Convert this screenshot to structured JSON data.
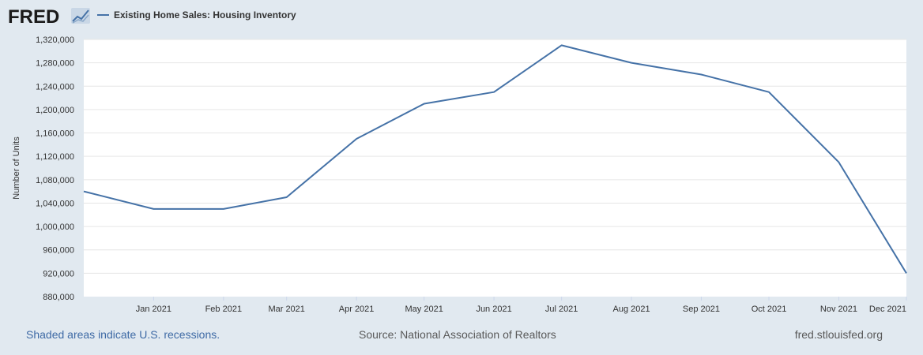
{
  "header": {
    "logo_text": "FRED",
    "series_name": "Existing Home Sales: Housing Inventory",
    "line_color": "#4572a7"
  },
  "footer": {
    "recession_note": "Shaded areas indicate U.S. recessions.",
    "source": "Source: National Association of Realtors",
    "site": "fred.stlouisfed.org"
  },
  "chart_data": {
    "type": "line",
    "title": "Existing Home Sales: Housing Inventory",
    "xlabel": "",
    "ylabel": "Number of Units",
    "ylim": [
      880000,
      1320000
    ],
    "yticks": [
      880000,
      920000,
      960000,
      1000000,
      1040000,
      1080000,
      1120000,
      1160000,
      1200000,
      1240000,
      1280000,
      1320000
    ],
    "ytick_labels": [
      "880,000",
      "920,000",
      "960,000",
      "1,000,000",
      "1,040,000",
      "1,080,000",
      "1,120,000",
      "1,160,000",
      "1,200,000",
      "1,240,000",
      "1,280,000",
      "1,320,000"
    ],
    "x_tick_labels": [
      "Jan 2021",
      "Feb 2021",
      "Mar 2021",
      "Apr 2021",
      "May 2021",
      "Jun 2021",
      "Jul 2021",
      "Aug 2021",
      "Sep 2021",
      "Oct 2021",
      "Nov 2021",
      "Dec 2021"
    ],
    "x_domain": [
      "2020-12-01",
      "2021-12-01"
    ],
    "grid": true,
    "series": [
      {
        "name": "Existing Home Sales: Housing Inventory",
        "x": [
          "2020-12-01",
          "2021-01-01",
          "2021-02-01",
          "2021-03-01",
          "2021-04-01",
          "2021-05-01",
          "2021-06-01",
          "2021-07-01",
          "2021-08-01",
          "2021-09-01",
          "2021-10-01",
          "2021-11-01",
          "2021-12-01"
        ],
        "values": [
          1060000,
          1030000,
          1030000,
          1050000,
          1150000,
          1210000,
          1230000,
          1310000,
          1280000,
          1260000,
          1230000,
          1110000,
          920000
        ]
      }
    ]
  }
}
